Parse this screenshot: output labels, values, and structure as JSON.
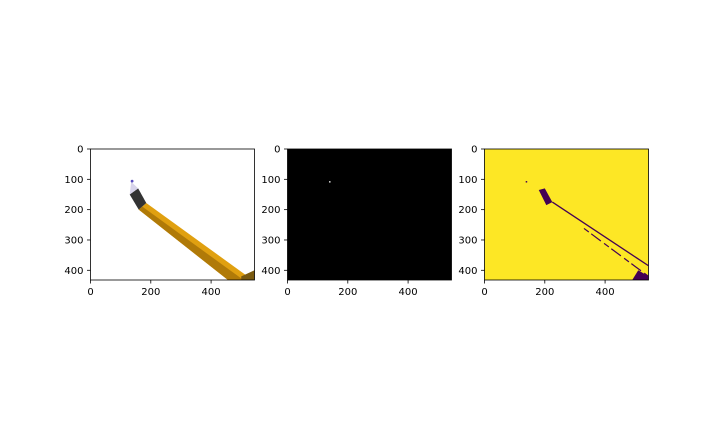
{
  "chart_data": [
    {
      "type": "image",
      "panel": "original",
      "title": "",
      "background": "#ffffff",
      "xlim": [
        0,
        544
      ],
      "ylim": [
        432,
        0
      ],
      "xticks": [
        0,
        200,
        400
      ],
      "yticks": [
        0,
        100,
        200,
        300,
        400
      ],
      "content": "pencil-photo",
      "colors": {
        "pencil_body": "#e0a010",
        "pencil_body_dark": "#b07a08",
        "ferrule": "#333333",
        "lead_tip": "#5a4fc0"
      }
    },
    {
      "type": "image",
      "panel": "binary-mask",
      "title": "",
      "background": "#000000",
      "xlim": [
        0,
        544
      ],
      "ylim": [
        432,
        0
      ],
      "xticks": [
        0,
        200,
        400
      ],
      "yticks": [
        0,
        100,
        200,
        300,
        400
      ],
      "highlight_pixel": {
        "x": 140,
        "y": 108,
        "color": "#ffffff"
      }
    },
    {
      "type": "image",
      "panel": "label-map",
      "title": "",
      "background": "#fde725",
      "xlim": [
        0,
        544
      ],
      "ylim": [
        432,
        0
      ],
      "xticks": [
        0,
        200,
        400
      ],
      "yticks": [
        0,
        100,
        200,
        300,
        400
      ],
      "colors": {
        "foreground": "#fde725",
        "background_region": "#440154"
      }
    }
  ]
}
